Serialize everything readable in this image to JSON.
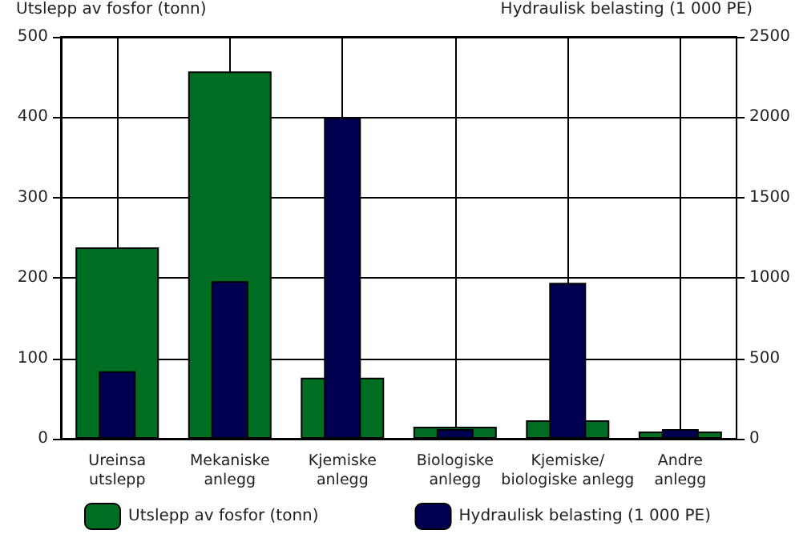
{
  "chart_data": {
    "type": "bar",
    "categories": [
      "Ureinsa\nutslepp",
      "Mekaniske\nanlegg",
      "Kjemiske\nanlegg",
      "Biologiske\nanlegg",
      "Kjemiske/\nbiologiske anlegg",
      "Andre\nanlegg"
    ],
    "ylabel": "Utslepp av fosfor (tonn)",
    "y2label": "Hydraulisk belasting (1 000 PE)",
    "series": [
      {
        "name": "Utslepp av fosfor (tonn)",
        "color": "#006e22",
        "values": [
          238,
          457,
          76,
          15,
          23,
          9
        ]
      },
      {
        "name": "Hydraulisk belasting (1 000 PE)",
        "color": "#000050",
        "axis": "y2",
        "values": [
          420,
          980,
          2000,
          60,
          970,
          60
        ]
      }
    ],
    "ylim": [
      0,
      500
    ],
    "yticks": [
      0,
      100,
      200,
      300,
      400,
      500
    ],
    "y2lim": [
      0,
      2500
    ],
    "y2ticks": [
      0,
      500,
      1000,
      1500,
      2000,
      2500
    ],
    "grid": true,
    "legend": "bottom"
  }
}
